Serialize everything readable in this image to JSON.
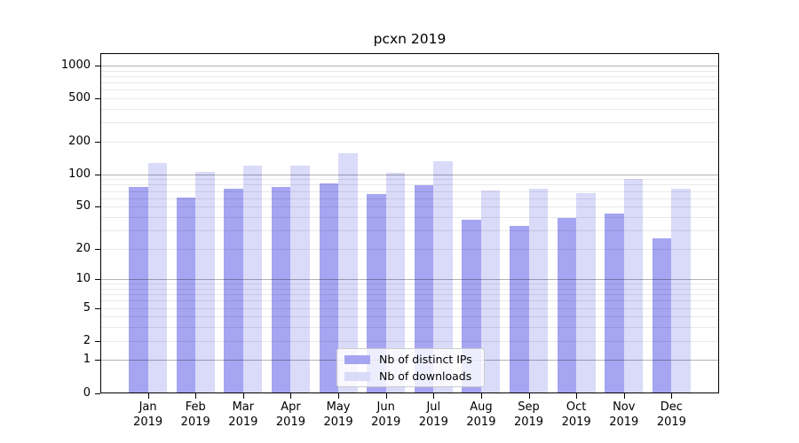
{
  "chart_data": {
    "type": "bar",
    "title": "pcxn 2019",
    "categories": [
      "Jan",
      "Feb",
      "Mar",
      "Apr",
      "May",
      "Jun",
      "Jul",
      "Aug",
      "Sep",
      "Oct",
      "Nov",
      "Dec"
    ],
    "category_year": "2019",
    "series": [
      {
        "name": "Nb of distinct IPs",
        "color": "#a5a5f2",
        "values": [
          76,
          61,
          74,
          76,
          82,
          66,
          79,
          38,
          33,
          39,
          43,
          25
        ]
      },
      {
        "name": "Nb of downloads",
        "color": "#dadaf9",
        "values": [
          127,
          105,
          119,
          121,
          156,
          104,
          131,
          71,
          73,
          67,
          91,
          73
        ]
      }
    ],
    "yscale": "log1p",
    "ylim": [
      0,
      1300
    ],
    "yticks": [
      0,
      1,
      2,
      5,
      10,
      20,
      50,
      100,
      200,
      500,
      1000
    ],
    "major_gridlines": [
      1,
      10,
      100,
      1000
    ],
    "minor_gridline_multiples": [
      2,
      3,
      4,
      5,
      6,
      7,
      8,
      9
    ],
    "grid": true,
    "legend_position": "lower-center",
    "background_color": "#ffffff",
    "axis_color": "#000000"
  }
}
